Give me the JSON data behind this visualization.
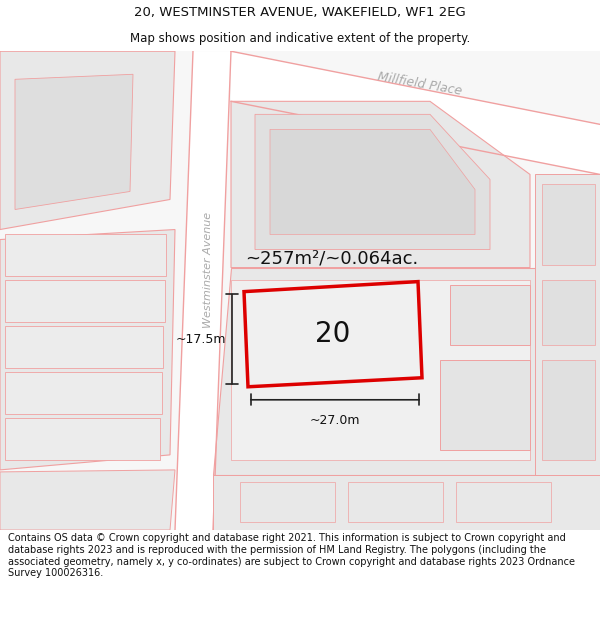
{
  "title": "20, WESTMINSTER AVENUE, WAKEFIELD, WF1 2EG",
  "subtitle": "Map shows position and indicative extent of the property.",
  "title_fontsize": 9.5,
  "subtitle_fontsize": 8.5,
  "footer_text": "Contains OS data © Crown copyright and database right 2021. This information is subject to Crown copyright and database rights 2023 and is reproduced with the permission of HM Land Registry. The polygons (including the associated geometry, namely x, y co-ordinates) are subject to Crown copyright and database rights 2023 Ordnance Survey 100026316.",
  "footer_fontsize": 7.0,
  "background_color": "#ffffff",
  "map_bg": "#f7f7f7",
  "block_color": "#e8e8e8",
  "road_color": "#ffffff",
  "pink": "#f0a0a0",
  "plot_red": "#dd0000",
  "dim_color": "#222222",
  "gray_text": "#aaaaaa",
  "area_text": "~257m²/~0.064ac.",
  "area_fontsize": 13,
  "plot_number": "20",
  "plot_number_fontsize": 20,
  "dim_width_text": "~27.0m",
  "dim_height_text": "~17.5m",
  "dim_fontsize": 9,
  "street_name": "Millfield Place",
  "street_name2": "Westminster Avenue",
  "street_fontsize": 9
}
